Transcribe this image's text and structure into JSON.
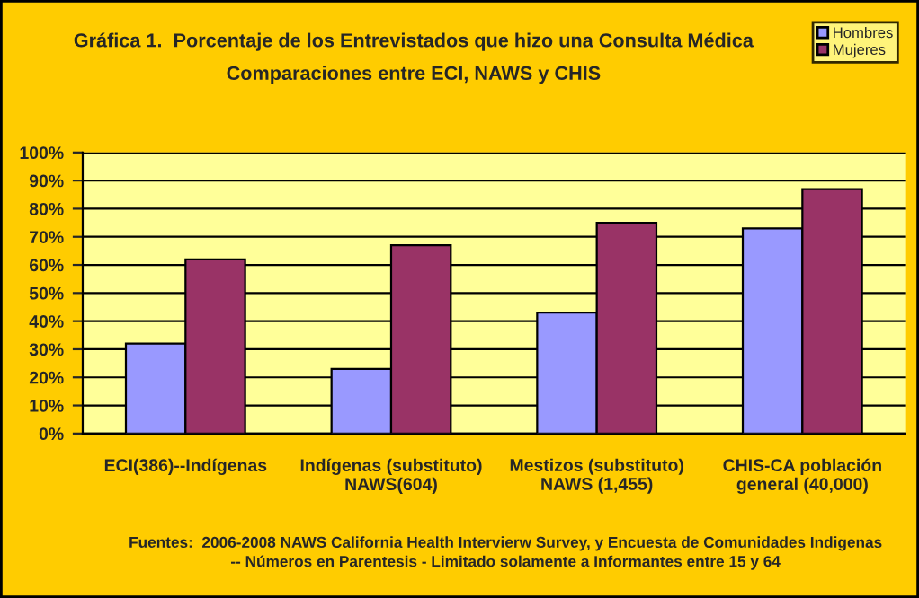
{
  "chart_data": {
    "type": "bar",
    "title": "Gráfica 1.  Porcentaje de los Entrevistados que hizo una Consulta Médica",
    "subtitle": "Comparaciones entre ECI, NAWS y CHIS",
    "categories": [
      "ECI(386)--Indígenas",
      "Indígenas (substituto)\nNAWS(604)",
      "Mestizos (substituto)\nNAWS (1,455)",
      "CHIS-CA población\ngeneral (40,000)"
    ],
    "series": [
      {
        "name": "Hombres",
        "color": "#9999ff",
        "values": [
          32,
          23,
          43,
          73
        ]
      },
      {
        "name": "Mujeres",
        "color": "#993366",
        "values": [
          62,
          67,
          75,
          87
        ]
      }
    ],
    "ylim": [
      0,
      100
    ],
    "yticks": [
      {
        "value": 0,
        "label": "0%"
      },
      {
        "value": 10,
        "label": "10%"
      },
      {
        "value": 20,
        "label": "20%"
      },
      {
        "value": 30,
        "label": "30%"
      },
      {
        "value": 40,
        "label": "40%"
      },
      {
        "value": 50,
        "label": "50%"
      },
      {
        "value": 60,
        "label": "60%"
      },
      {
        "value": 70,
        "label": "70%"
      },
      {
        "value": 80,
        "label": "80%"
      },
      {
        "value": 90,
        "label": "90%"
      },
      {
        "value": 100,
        "label": "100%"
      }
    ],
    "grid": "y",
    "legend": "top right",
    "annotations": [
      "Fuentes:  2006-2008 NAWS California Health Intervierw Survey, y Encuesta de Comunidades Indigenas\n-- Números en Parentesis - Limitado solamente a Informantes entre 15 y 64"
    ]
  }
}
